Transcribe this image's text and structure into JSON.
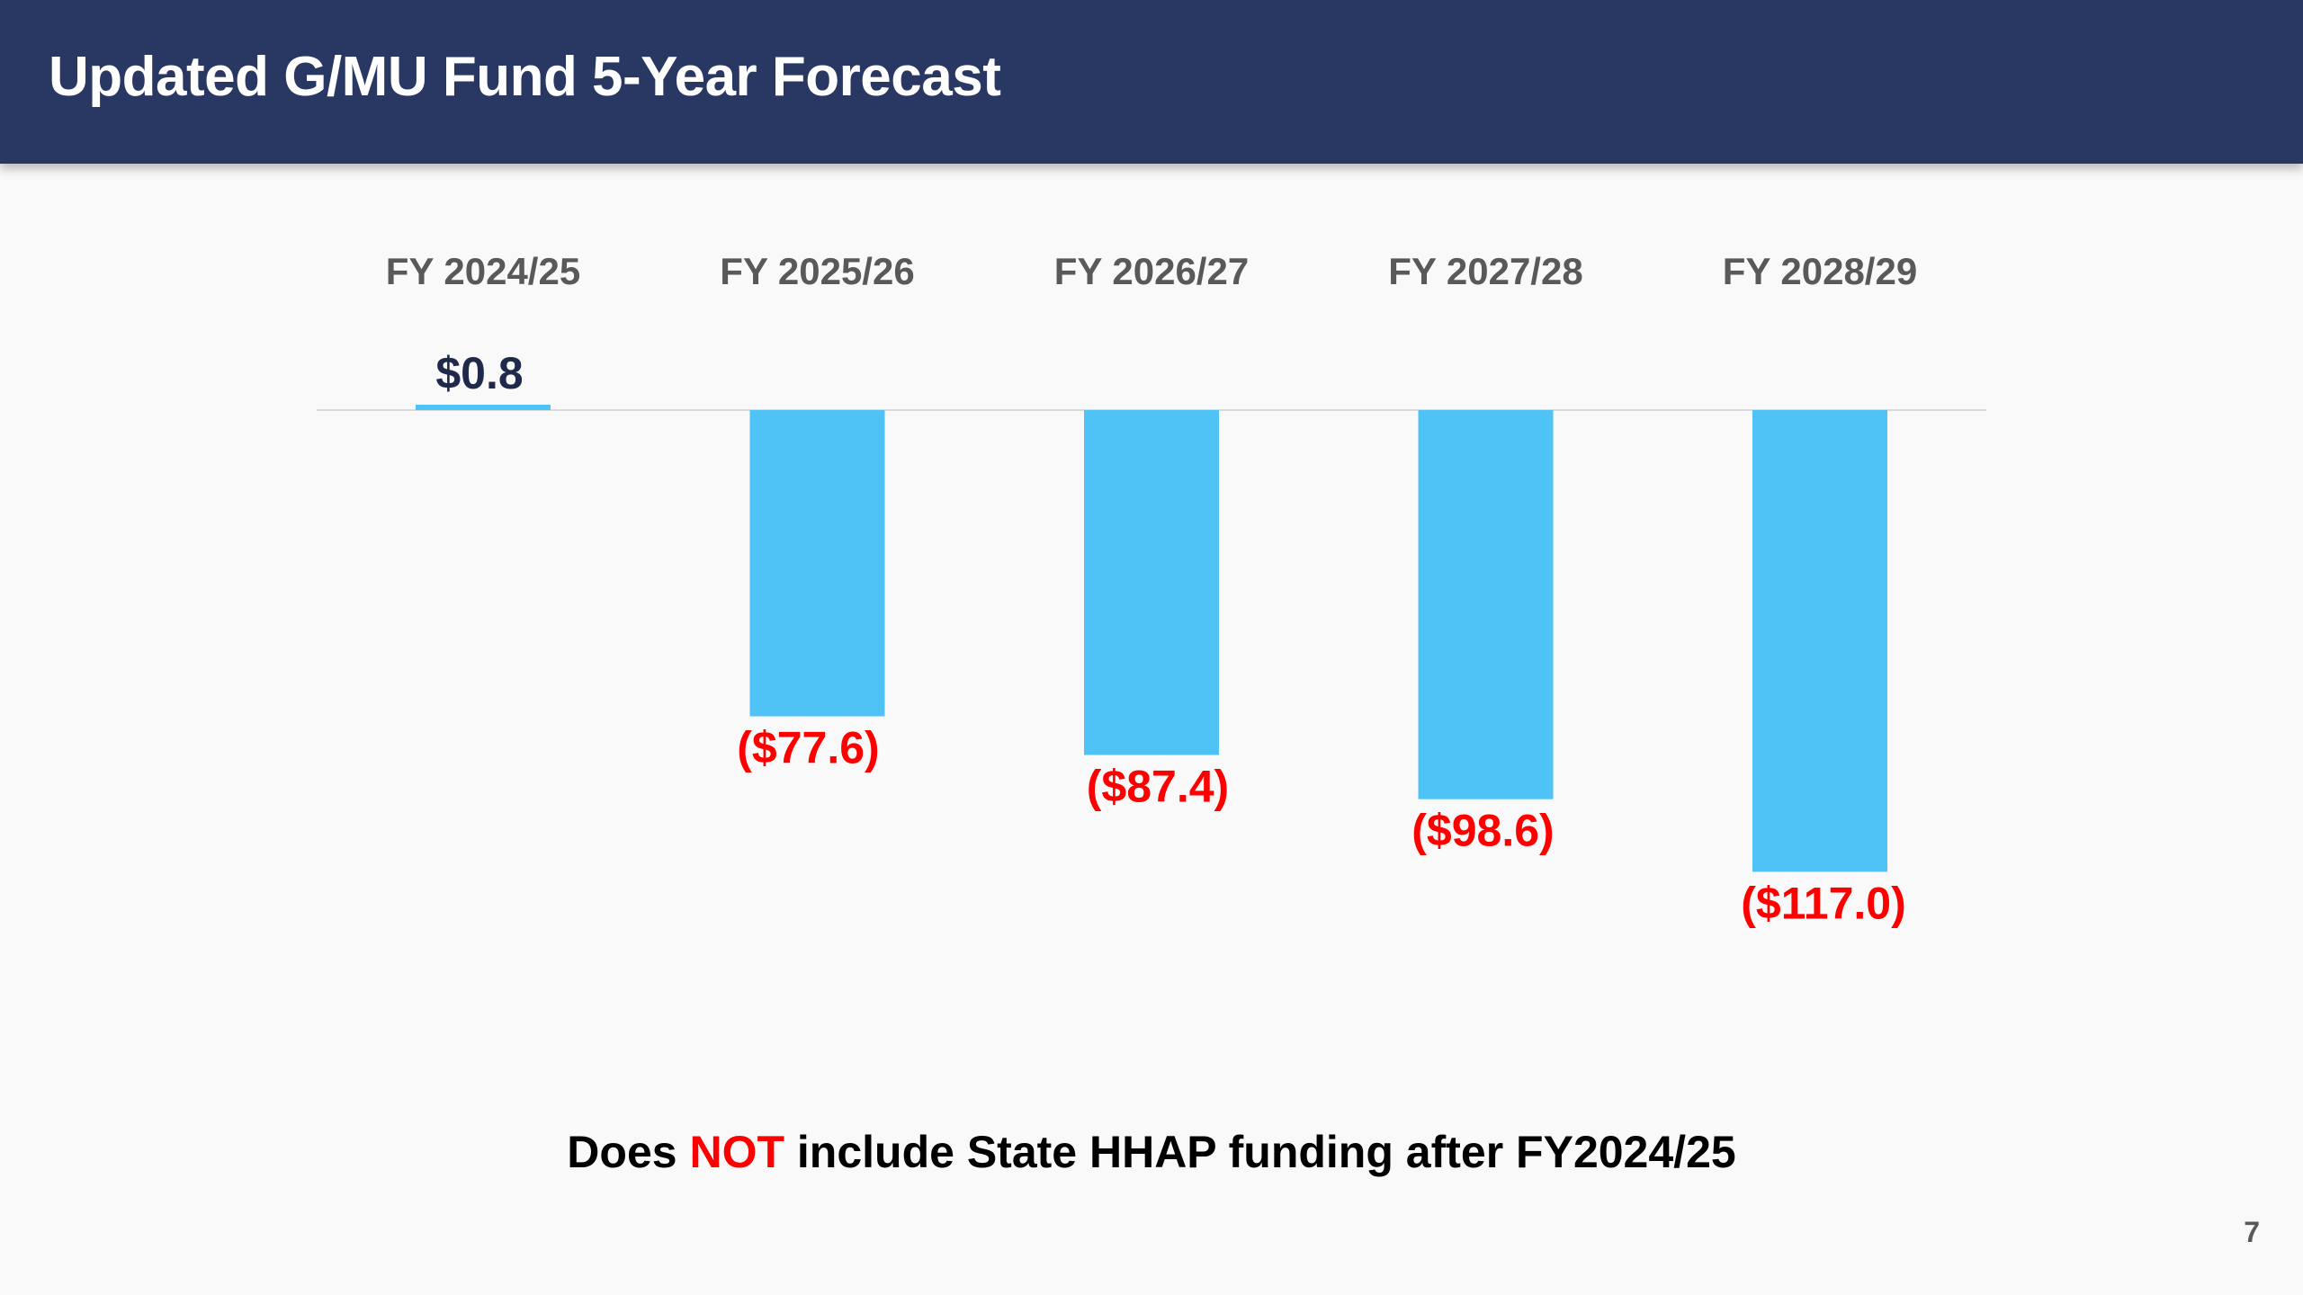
{
  "header": {
    "title": "Updated G/MU Fund 5-Year Forecast"
  },
  "chart_data": {
    "type": "bar",
    "title": "",
    "xlabel": "",
    "ylabel": "",
    "categories": [
      "FY 2024/25",
      "FY 2025/26",
      "FY 2026/27",
      "FY 2027/28",
      "FY 2028/29"
    ],
    "values": [
      0.8,
      -77.6,
      -87.4,
      -98.6,
      -117.0
    ],
    "data_labels": [
      "$0.8",
      "($77.6)",
      "($87.4)",
      "($98.6)",
      "($117.0)"
    ],
    "ylim": [
      -120,
      5
    ],
    "grid": false,
    "legend": false,
    "colors": {
      "bar": "#4fc3f5",
      "positive_label": "#1f2a4a",
      "negative_label": "#ff0000",
      "category_label": "#595959",
      "baseline": "#d9d9d9"
    }
  },
  "footnote": {
    "part1": "Does ",
    "highlight": "NOT",
    "part2": " include State HHAP funding after FY2024/25"
  },
  "page_number": "7",
  "theme": {
    "header_bg": "#293763",
    "accent_red": "#ff0000"
  }
}
